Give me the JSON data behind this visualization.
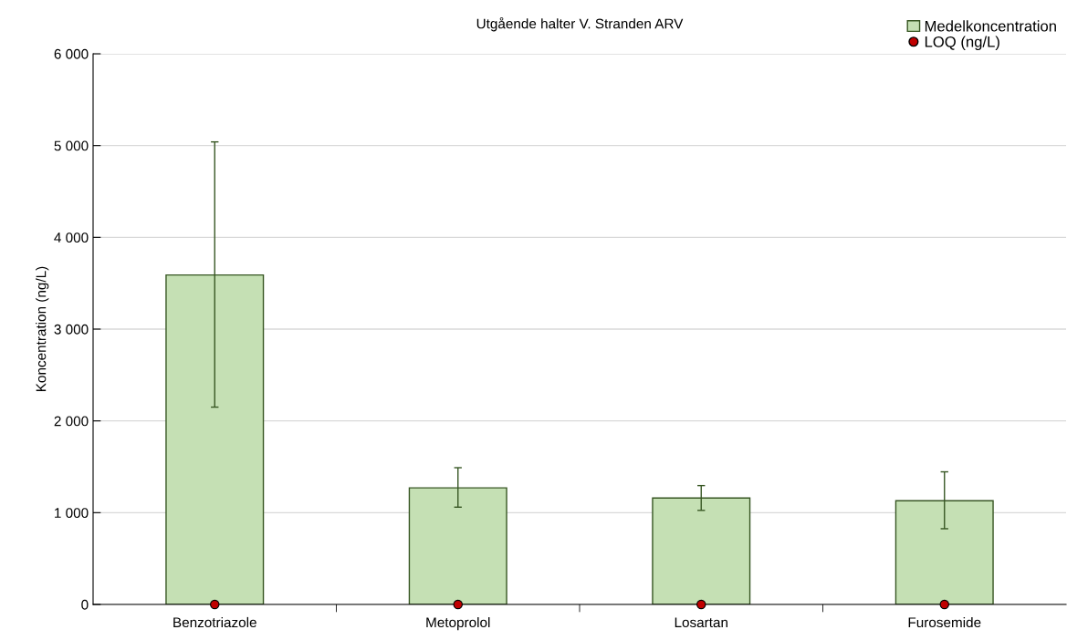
{
  "chart_data": {
    "type": "bar",
    "title": "Utgående halter V. Stranden ARV",
    "ylabel": "Koncentration (ng/L)",
    "categories": [
      "Benzotriazole",
      "Metoprolol",
      "Losartan",
      "Furosemide"
    ],
    "series": [
      {
        "name": "Medelkoncentration",
        "color": "#c5e0b4",
        "values": [
          3590,
          1270,
          1160,
          1130
        ],
        "errors": [
          [
            2150,
            5040
          ],
          [
            1060,
            1490
          ],
          [
            1025,
            1295
          ],
          [
            825,
            1445
          ]
        ]
      },
      {
        "name": "LOQ (ng/L)",
        "type": "scatter",
        "color": "#c00000",
        "marker": "circle",
        "values": [
          0,
          0,
          0,
          0
        ]
      }
    ],
    "ylim": [
      0,
      6000
    ],
    "yticks": [
      {
        "value": 0,
        "label": "0"
      },
      {
        "value": 1000,
        "label": "1 000"
      },
      {
        "value": 2000,
        "label": "2 000"
      },
      {
        "value": 3000,
        "label": "3 000"
      },
      {
        "value": 4000,
        "label": "4 000"
      },
      {
        "value": 5000,
        "label": "5 000"
      },
      {
        "value": 6000,
        "label": "6 000"
      }
    ],
    "grid": "y",
    "legend": "top right"
  }
}
